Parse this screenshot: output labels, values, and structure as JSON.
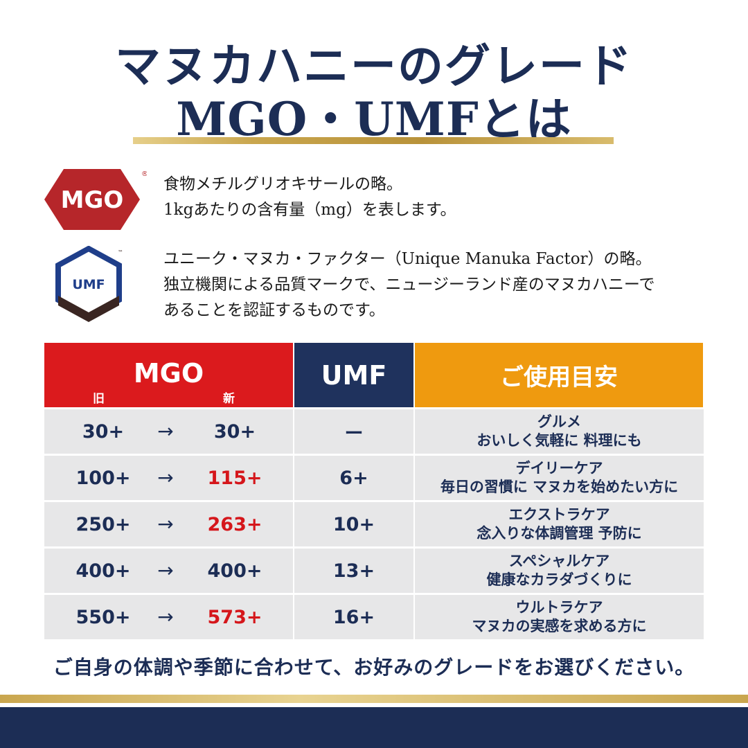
{
  "title": {
    "line1": "マヌカハニーのグレード",
    "line2": "MGO・UMFとは"
  },
  "mgo_logo": {
    "text": "MGO",
    "reg_mark": "®",
    "color": "#b6262a"
  },
  "umf_logo": {
    "text": "UMF",
    "tm_mark": "™",
    "color": "#1f3e8a"
  },
  "mgo_description": [
    "食物メチルグリオキサールの略。",
    "1kgあたりの含有量（mg）を表します。"
  ],
  "umf_description": [
    "ユニーク・マヌカ・ファクター（Unique Manuka Factor）の略。",
    "独立機関による品質マークで、ニュージーランド産のマヌカハニーで",
    "あることを認証するものです。"
  ],
  "table": {
    "headers": {
      "mgo": "MGO",
      "mgo_old": "旧",
      "mgo_new": "新",
      "umf": "UMF",
      "usage": "ご使用目安"
    },
    "arrow": "→",
    "rows": [
      {
        "old": "30+",
        "new": "30+",
        "new_changed": false,
        "umf": "ー",
        "usage_title": "グルメ",
        "usage_desc": "おいしく気軽に 料理にも"
      },
      {
        "old": "100+",
        "new": "115+",
        "new_changed": true,
        "umf": "6+",
        "usage_title": "デイリーケア",
        "usage_desc": "毎日の習慣に マヌカを始めたい方に"
      },
      {
        "old": "250+",
        "new": "263+",
        "new_changed": true,
        "umf": "10+",
        "usage_title": "エクストラケア",
        "usage_desc": "念入りな体調管理 予防に"
      },
      {
        "old": "400+",
        "new": "400+",
        "new_changed": false,
        "umf": "13+",
        "usage_title": "スペシャルケア",
        "usage_desc": "健康なカラダづくりに"
      },
      {
        "old": "550+",
        "new": "573+",
        "new_changed": true,
        "umf": "16+",
        "usage_title": "ウルトラケア",
        "usage_desc": "マヌカの実感を求める方に"
      }
    ]
  },
  "footer_text": "ご自身の体調や季節に合わせて、お好みのグレードをお選びください。",
  "colors": {
    "navy": "#1c2d55",
    "red": "#db1a1d",
    "orange": "#ef9a0f",
    "gold": "#c9a64e",
    "row_bg": "#e7e7e8"
  }
}
